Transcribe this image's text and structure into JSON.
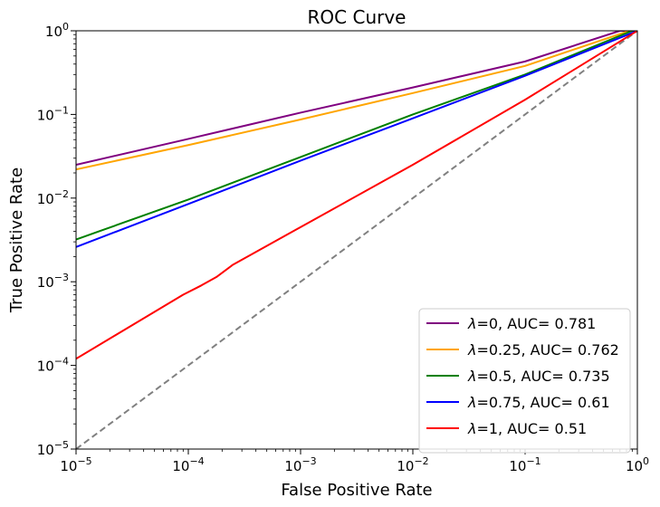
{
  "chart_data": {
    "type": "line",
    "title": "ROC Curve",
    "xlabel": "False Positive Rate",
    "ylabel": "True Positive Rate",
    "xscale": "log",
    "yscale": "log",
    "xlim": [
      1e-05,
      1
    ],
    "ylim": [
      1e-05,
      1
    ],
    "x_ticks": [
      {
        "value": 1e-05,
        "base": "10",
        "exp": "−5"
      },
      {
        "value": 0.0001,
        "base": "10",
        "exp": "−4"
      },
      {
        "value": 0.001,
        "base": "10",
        "exp": "−3"
      },
      {
        "value": 0.01,
        "base": "10",
        "exp": "−2"
      },
      {
        "value": 0.1,
        "base": "10",
        "exp": "−1"
      },
      {
        "value": 1,
        "base": "10",
        "exp": "0"
      }
    ],
    "y_ticks": [
      {
        "value": 1e-05,
        "base": "10",
        "exp": "−5"
      },
      {
        "value": 0.0001,
        "base": "10",
        "exp": "−4"
      },
      {
        "value": 0.001,
        "base": "10",
        "exp": "−3"
      },
      {
        "value": 0.01,
        "base": "10",
        "exp": "−2"
      },
      {
        "value": 0.1,
        "base": "10",
        "exp": "−1"
      },
      {
        "value": 1,
        "base": "10",
        "exp": "0"
      }
    ],
    "grid": false,
    "legend_position": "lower-right",
    "series": [
      {
        "name": "λ=0, AUC= 0.781",
        "legend_symbol": "λ",
        "legend_text": "=0, AUC= 0.781",
        "color": "#800080",
        "style": "solid",
        "x": [
          1e-05,
          0.0001,
          0.001,
          0.01,
          0.1,
          0.7,
          1
        ],
        "y": [
          0.025,
          0.051,
          0.105,
          0.21,
          0.43,
          1.0,
          1.0
        ]
      },
      {
        "name": "λ=0.25, AUC= 0.762",
        "legend_symbol": "λ",
        "legend_text": "=0.25, AUC= 0.762",
        "color": "#ffa500",
        "style": "solid",
        "x": [
          1e-05,
          0.0001,
          0.001,
          0.01,
          0.1,
          0.85,
          1
        ],
        "y": [
          0.022,
          0.043,
          0.087,
          0.18,
          0.38,
          1.0,
          1.0
        ]
      },
      {
        "name": "λ=0.5, AUC= 0.735",
        "legend_symbol": "λ",
        "legend_text": "=0.5, AUC= 0.735",
        "color": "#008000",
        "style": "solid",
        "x": [
          1e-05,
          0.0001,
          0.001,
          0.01,
          0.1,
          0.9,
          1
        ],
        "y": [
          0.0032,
          0.0096,
          0.031,
          0.1,
          0.3,
          1.0,
          1.0
        ]
      },
      {
        "name": "λ=0.75, AUC= 0.61",
        "legend_symbol": "λ",
        "legend_text": "=0.75, AUC= 0.61",
        "color": "#0000ff",
        "style": "solid",
        "x": [
          1e-05,
          0.0001,
          0.001,
          0.01,
          0.1,
          1
        ],
        "y": [
          0.0026,
          0.0085,
          0.028,
          0.09,
          0.29,
          1.0
        ]
      },
      {
        "name": "λ=1, AUC= 0.51",
        "legend_symbol": "λ",
        "legend_text": "=1, AUC= 0.51",
        "color": "#ff0000",
        "style": "solid",
        "x": [
          1e-05,
          9e-05,
          0.00013,
          0.00018,
          0.00025,
          0.001,
          0.01,
          0.1,
          1
        ],
        "y": [
          0.00012,
          0.0007,
          0.0009,
          0.00115,
          0.0016,
          0.0045,
          0.025,
          0.15,
          1.0
        ]
      },
      {
        "name": "",
        "color": "#808080",
        "style": "dashed",
        "x": [
          1e-05,
          1
        ],
        "y": [
          1e-05,
          1
        ]
      }
    ]
  }
}
